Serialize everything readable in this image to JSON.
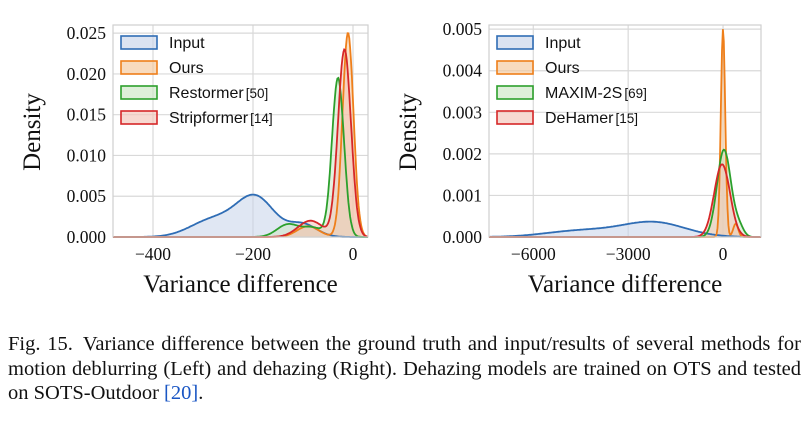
{
  "chart_data": [
    {
      "type": "kde-density",
      "panel": "Left (motion deblurring)",
      "xlabel": "Variance difference",
      "ylabel": "Density",
      "xlim": [
        -480,
        30
      ],
      "ylim": [
        0,
        0.026
      ],
      "xticks": [
        -400,
        -200,
        0
      ],
      "xtick_labels": [
        "−400",
        "−200",
        "0"
      ],
      "yticks": [
        0,
        0.005,
        0.01,
        0.015,
        0.02,
        0.025
      ],
      "ytick_labels": [
        "0.000",
        "0.005",
        "0.010",
        "0.015",
        "0.020",
        "0.025"
      ],
      "grid": true,
      "legend_position": "top-left",
      "series": [
        {
          "name": "Input",
          "ref": "",
          "color": "#2f6db5",
          "fill": "#c7d4ea",
          "components": [
            {
              "mu": -280,
              "sigma": 45,
              "w": 0.25
            },
            {
              "mu": -195,
              "sigma": 38,
              "w": 0.57
            },
            {
              "mu": -100,
              "sigma": 28,
              "w": 0.18
            }
          ],
          "peak": 0.0052
        },
        {
          "name": "Ours",
          "ref": "",
          "color": "#ef7f1a",
          "fill": "#f5c89b",
          "components": [
            {
              "mu": -10,
              "sigma": 11,
              "w": 0.95
            },
            {
              "mu": -90,
              "sigma": 22,
              "w": 0.05
            }
          ],
          "peak": 0.025
        },
        {
          "name": "Restormer",
          "ref": "[50]",
          "color": "#2ca02c",
          "fill": "#cde6c5",
          "components": [
            {
              "mu": -30,
              "sigma": 12,
              "w": 0.88
            },
            {
              "mu": -130,
              "sigma": 22,
              "w": 0.07
            },
            {
              "mu": -80,
              "sigma": 20,
              "w": 0.05
            }
          ],
          "peak": 0.0195
        },
        {
          "name": "Stripformer",
          "ref": "[14]",
          "color": "#d62728",
          "fill": "#f2c4b8",
          "components": [
            {
              "mu": -17,
              "sigma": 13,
              "w": 0.92
            },
            {
              "mu": -85,
              "sigma": 25,
              "w": 0.08
            }
          ],
          "peak": 0.023
        }
      ]
    },
    {
      "type": "kde-density",
      "panel": "Right (dehazing)",
      "xlabel": "Variance difference",
      "ylabel": "Density",
      "xlim": [
        -7400,
        1200
      ],
      "ylim": [
        0,
        0.0051
      ],
      "xticks": [
        -6000,
        -3000,
        0
      ],
      "xtick_labels": [
        "−6000",
        "−3000",
        "0"
      ],
      "yticks": [
        0,
        0.001,
        0.002,
        0.003,
        0.004,
        0.005
      ],
      "ytick_labels": [
        "0.000",
        "0.001",
        "0.002",
        "0.003",
        "0.004",
        "0.005"
      ],
      "grid": true,
      "legend_position": "top-left",
      "series": [
        {
          "name": "Input",
          "ref": "",
          "color": "#2f6db5",
          "fill": "#c7d4ea",
          "components": [
            {
              "mu": -2200,
              "sigma": 1000,
              "w": 0.7
            },
            {
              "mu": -4500,
              "sigma": 1100,
              "w": 0.3
            }
          ],
          "peak": 0.00037
        },
        {
          "name": "Ours",
          "ref": "",
          "color": "#ef7f1a",
          "fill": "#f5c89b",
          "components": [
            {
              "mu": 0,
              "sigma": 70,
              "w": 0.94
            },
            {
              "mu": 400,
              "sigma": 80,
              "w": 0.06
            }
          ],
          "peak": 0.005
        },
        {
          "name": "MAXIM-2S",
          "ref": "[69]",
          "color": "#2ca02c",
          "fill": "#cde6c5",
          "components": [
            {
              "mu": 30,
              "sigma": 220,
              "w": 0.9
            },
            {
              "mu": 500,
              "sigma": 150,
              "w": 0.1
            }
          ],
          "peak": 0.0021
        },
        {
          "name": "DeHamer",
          "ref": "[15]",
          "color": "#d62728",
          "fill": "#f2c4b8",
          "components": [
            {
              "mu": -30,
              "sigma": 250,
              "w": 1.0
            }
          ],
          "peak": 0.00175
        }
      ]
    }
  ],
  "caption": {
    "label": "Fig. 15.",
    "text": "Variance difference between the ground truth and input/results of several methods for motion deblurring (Left) and dehazing (Right). Dehazing models are trained on OTS and tested on SOTS-Outdoor",
    "ref": "[20]",
    "end": "."
  }
}
